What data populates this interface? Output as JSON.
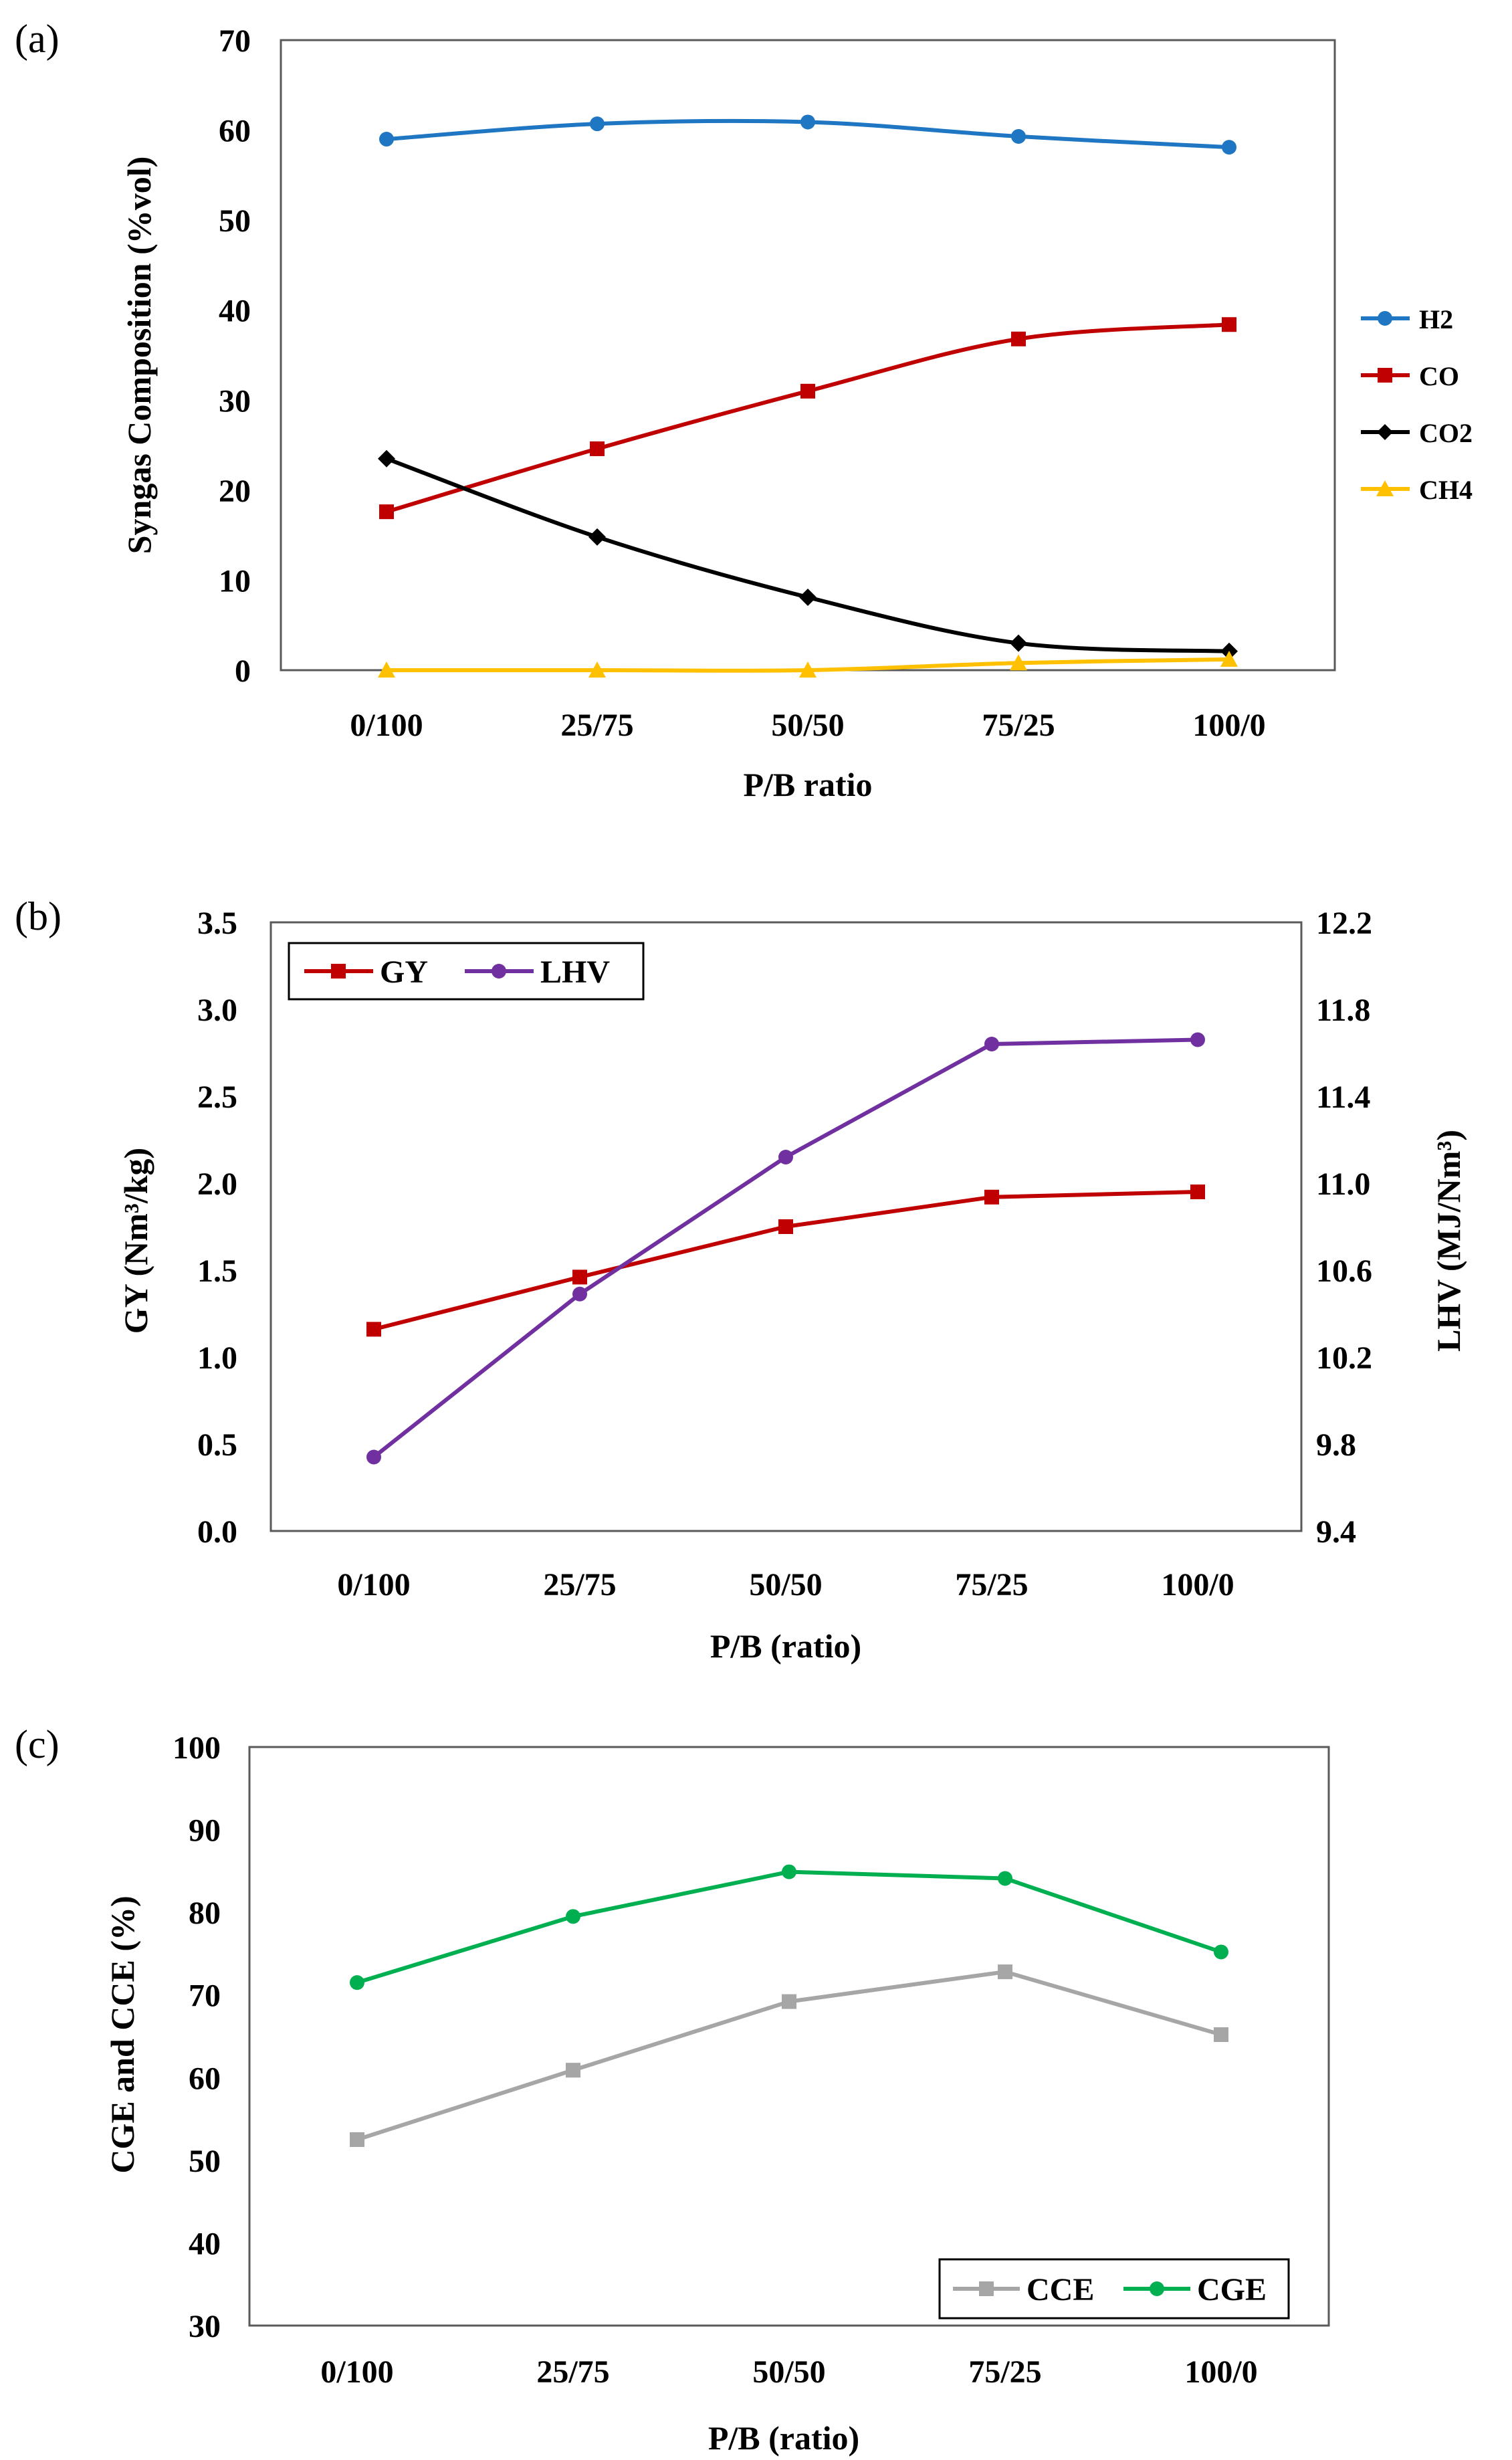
{
  "chart_data": [
    {
      "panel": "(a)",
      "type": "line",
      "categories": [
        "0/100",
        "25/75",
        "50/50",
        "75/25",
        "100/0"
      ],
      "xlabel": "P/B ratio",
      "ylabel": "Syngas Composition (%vol)",
      "ylim": [
        0,
        70
      ],
      "yticks": [
        "0",
        "10",
        "20",
        "30",
        "40",
        "50",
        "60",
        "70"
      ],
      "legend_position": "right",
      "series": [
        {
          "name": "H2",
          "color": "#1f77c4",
          "marker": "circle",
          "values": [
            59.0,
            60.7,
            60.9,
            59.3,
            58.1
          ]
        },
        {
          "name": "CO",
          "color": "#c00000",
          "marker": "square",
          "values": [
            17.6,
            24.6,
            31.0,
            36.8,
            38.4
          ]
        },
        {
          "name": "CO2",
          "color": "#000000",
          "marker": "diamond",
          "values": [
            23.5,
            14.8,
            8.1,
            3.0,
            2.1
          ]
        },
        {
          "name": "CH4",
          "color": "#ffc000",
          "marker": "triangle",
          "values": [
            0.0,
            0.0,
            0.0,
            0.8,
            1.2
          ]
        }
      ]
    },
    {
      "panel": "(b)",
      "type": "line",
      "categories": [
        "0/100",
        "25/75",
        "50/50",
        "75/25",
        "100/0"
      ],
      "xlabel": "P/B (ratio)",
      "ylabel": "GY (Nm³/kg)",
      "ylabel_right": "LHV (MJ/Nm³)",
      "ylim": [
        0,
        3.5
      ],
      "ylim_right": [
        9.4,
        12.2
      ],
      "yticks": [
        "0.0",
        "0.5",
        "1.0",
        "1.5",
        "2.0",
        "2.5",
        "3.0",
        "3.5"
      ],
      "yticks_right": [
        "9.4",
        "9.8",
        "10.2",
        "10.6",
        "11.0",
        "11.4",
        "11.8",
        "12.2"
      ],
      "legend_position": "top-left",
      "series": [
        {
          "name": "GY",
          "axis": "left",
          "color": "#c00000",
          "marker": "square",
          "values": [
            1.16,
            1.46,
            1.75,
            1.92,
            1.95
          ]
        },
        {
          "name": "LHV",
          "axis": "right",
          "color": "#7030a0",
          "marker": "circle",
          "values": [
            9.74,
            10.49,
            11.12,
            11.64,
            11.66
          ]
        }
      ]
    },
    {
      "panel": "(c)",
      "type": "line",
      "categories": [
        "0/100",
        "25/75",
        "50/50",
        "75/25",
        "100/0"
      ],
      "xlabel": "P/B (ratio)",
      "ylabel": "CGE and CCE (%)",
      "ylim": [
        30,
        100
      ],
      "yticks": [
        "30",
        "40",
        "50",
        "60",
        "70",
        "80",
        "90",
        "100"
      ],
      "legend_position": "bottom-right",
      "series": [
        {
          "name": "CCE",
          "color": "#a6a6a6",
          "marker": "square",
          "values": [
            52.5,
            60.9,
            69.2,
            72.8,
            65.2
          ]
        },
        {
          "name": "CGE",
          "color": "#00b050",
          "marker": "circle",
          "values": [
            71.5,
            79.5,
            84.9,
            84.1,
            75.2
          ]
        }
      ]
    }
  ]
}
